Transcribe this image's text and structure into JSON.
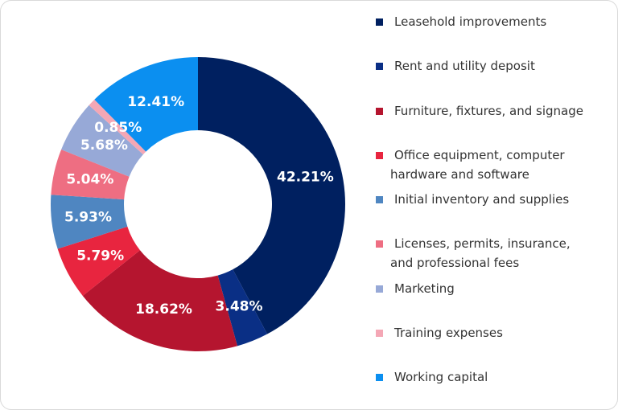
{
  "chart_data": {
    "type": "donut",
    "categories": [
      "Leasehold improvements",
      "Rent and utility deposit",
      "Furniture, fixtures, and signage",
      "Office equipment, computer hardware and software",
      "Initial inventory and supplies",
      "Licenses, permits, insurance, and professional fees",
      "Marketing",
      "Training expenses",
      "Working capital"
    ],
    "values": [
      42.21,
      3.48,
      18.62,
      5.79,
      5.93,
      5.04,
      5.68,
      0.85,
      12.41
    ],
    "value_labels": [
      "42.21%",
      "3.48%",
      "18.62%",
      "5.79%",
      "5.93%",
      "5.04%",
      "5.68%",
      "0.85%",
      "12.41%"
    ],
    "colors": [
      "#002060",
      "#0a2f85",
      "#b5152f",
      "#e8253f",
      "#4f86c1",
      "#ee6e82",
      "#97a9d7",
      "#f4a7b5",
      "#0b8ff0"
    ]
  }
}
